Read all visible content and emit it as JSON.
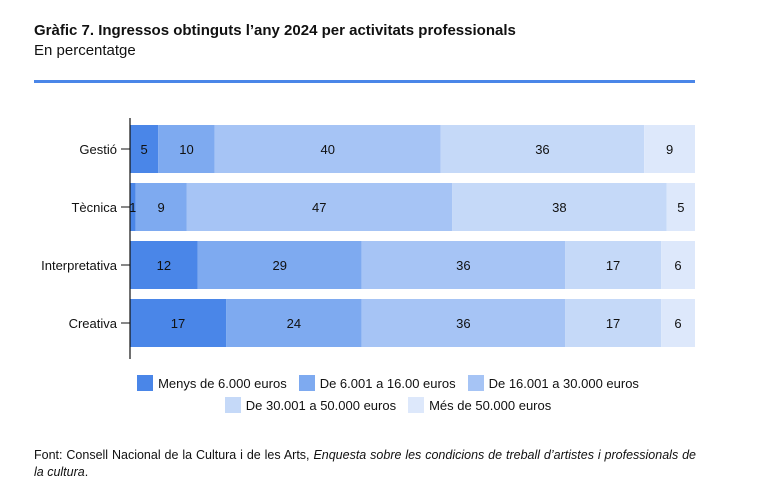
{
  "header": {
    "title": "Gràfic 7. Ingressos obtinguts l’any 2024 per activitats professionals",
    "subtitle": "En percentatge"
  },
  "chart_data": {
    "type": "bar",
    "orientation": "horizontal",
    "stacked": true,
    "categories": [
      "Gestió",
      "Tècnica",
      "Interpretativa",
      "Creativa"
    ],
    "series": [
      {
        "name": "Menys de 6.000 euros",
        "color": "#4a86e8",
        "values": [
          5,
          1,
          12,
          17
        ]
      },
      {
        "name": "De 6.001 a 16.00 euros",
        "color": "#7eaaf0",
        "values": [
          10,
          9,
          29,
          24
        ]
      },
      {
        "name": "De 16.001 a 30.000 euros",
        "color": "#a6c4f5",
        "values": [
          40,
          47,
          36,
          36
        ]
      },
      {
        "name": "De 30.001 a 50.000 euros",
        "color": "#c5d9f8",
        "values": [
          36,
          38,
          17,
          17
        ]
      },
      {
        "name": "Més de 50.000 euros",
        "color": "#dde8fb",
        "values": [
          9,
          5,
          6,
          6
        ]
      }
    ],
    "legend_position": "bottom",
    "grid": false
  },
  "footer": {
    "source_prefix": "Font: Consell Nacional de la Cultura i de les Arts, ",
    "source_title": "Enquesta sobre les condicions de treball d’artistes i professionals de la cultura",
    "source_suffix": "."
  }
}
